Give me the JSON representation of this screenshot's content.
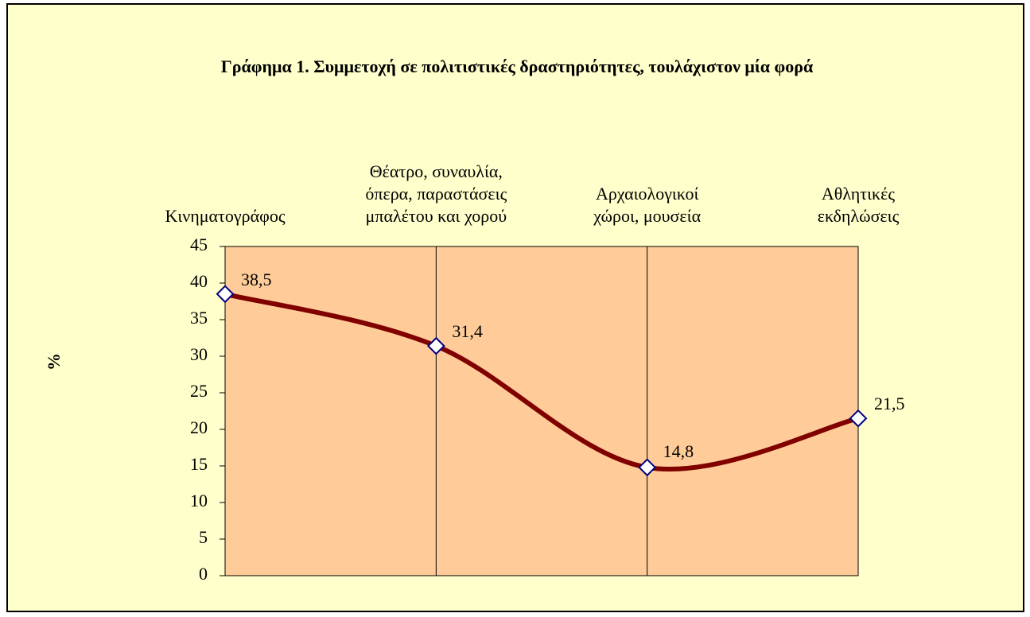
{
  "chart_data": {
    "type": "line",
    "title": "Γράφημα 1. Συμμετοχή σε πολιτιστικές δραστηριότητες, τουλάχιστον μία φορά",
    "y_label": "%",
    "categories": [
      "Κινηματογράφος",
      "Θέατρο, συναυλία,\nόπερα, παραστάσεις\nμπαλέτου και χορού",
      "Αρχαιολογικοί\nχώροι,  μουσεία",
      "Αθλητικές\nεκδηλώσεις"
    ],
    "series": [
      {
        "color": "#800000",
        "values": [
          38.5,
          31.4,
          14.8,
          21.5
        ],
        "value_labels": [
          "38,5",
          "31,4",
          "14,8",
          "21,5"
        ]
      }
    ],
    "ylim": [
      0,
      45
    ],
    "yticks": [
      0,
      5,
      10,
      15,
      20,
      25,
      30,
      35,
      40,
      45
    ],
    "smooth": true,
    "plot_background": "#FFCC99",
    "background": "#FFFFCC"
  }
}
